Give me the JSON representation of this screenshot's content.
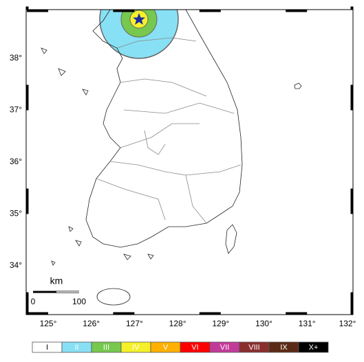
{
  "map": {
    "lon_ticks": [
      "125°",
      "126°",
      "127°",
      "128°",
      "129°",
      "130°",
      "131°",
      "132°"
    ],
    "lat_ticks": [
      "38°",
      "37°",
      "36°",
      "35°",
      "34°"
    ],
    "scale_bar": {
      "unit": "km",
      "start": "0",
      "end": "100"
    },
    "legend": [
      {
        "label": "I",
        "color": "#ffffff"
      },
      {
        "label": "II",
        "color": "#88e0f4"
      },
      {
        "label": "III",
        "color": "#77c84e"
      },
      {
        "label": "IV",
        "color": "#f5f02a"
      },
      {
        "label": "V",
        "color": "#ffb000"
      },
      {
        "label": "VI",
        "color": "#ff0000"
      },
      {
        "label": "VII",
        "color": "#c23a98"
      },
      {
        "label": "VIII",
        "color": "#8a2e2e"
      },
      {
        "label": "IX",
        "color": "#5b2a16"
      },
      {
        "label": "X+",
        "color": "#000000"
      }
    ]
  }
}
